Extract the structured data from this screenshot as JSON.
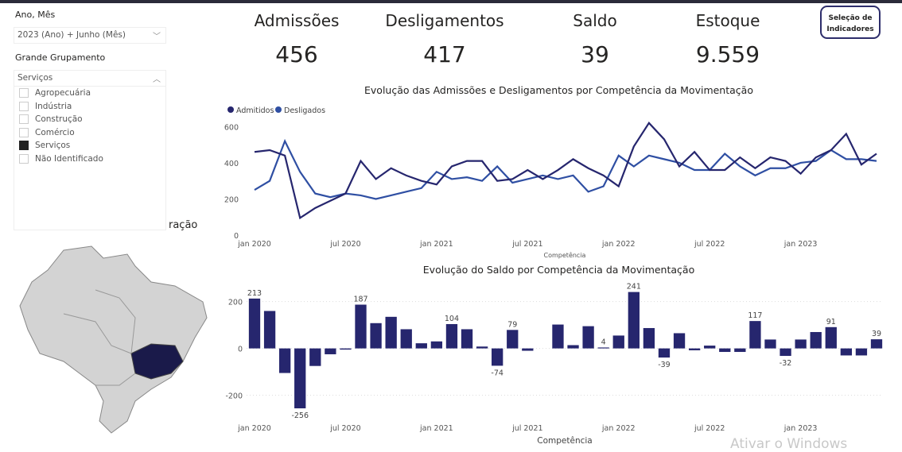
{
  "filters": {
    "period_label": "Ano, Mês",
    "period_value": "2023 (Ano) + Junho (Mês)",
    "group_label": "Grande Grupamento",
    "group_value": "Serviços",
    "group_options": [
      {
        "label": "Agropecuária",
        "checked": false
      },
      {
        "label": "Indústria",
        "checked": false
      },
      {
        "label": "Construção",
        "checked": false
      },
      {
        "label": "Comércio",
        "checked": false
      },
      {
        "label": "Serviços",
        "checked": true
      },
      {
        "label": "Não Identificado",
        "checked": false
      }
    ]
  },
  "partial_title": "ração",
  "kpis": [
    {
      "title": "Admissões",
      "value": "456"
    },
    {
      "title": "Desligamentos",
      "value": "417"
    },
    {
      "title": "Saldo",
      "value": "39"
    },
    {
      "title": "Estoque",
      "value": "9.559"
    }
  ],
  "selection_button": "Seleção de Indicadores",
  "watermark": "Ativar o Windows",
  "chart_data": [
    {
      "type": "line",
      "title": "Evolução das Admissões e Desligamentos por Competência da Movimentação",
      "xlabel": "Competência",
      "ylabel": "",
      "ylim": [
        0,
        650
      ],
      "yticks": [
        0,
        200,
        400,
        600
      ],
      "xticks": [
        "jan 2020",
        "jul 2020",
        "jan 2021",
        "jul 2021",
        "jan 2022",
        "jul 2022",
        "jan 2023"
      ],
      "colors": {
        "Admitidos": "#26266e",
        "Desligados": "#2f4fa3"
      },
      "series": [
        {
          "name": "Admitidos",
          "values": [
            460,
            470,
            440,
            95,
            150,
            190,
            230,
            410,
            310,
            370,
            330,
            300,
            280,
            380,
            410,
            410,
            300,
            310,
            360,
            310,
            360,
            420,
            370,
            330,
            270,
            490,
            620,
            530,
            380,
            460,
            360,
            360,
            430,
            370,
            430,
            410,
            340,
            430,
            470,
            560,
            390,
            450
          ]
        },
        {
          "name": "Desligados",
          "values": [
            250,
            300,
            520,
            350,
            230,
            210,
            230,
            220,
            200,
            220,
            240,
            260,
            350,
            310,
            320,
            300,
            380,
            290,
            310,
            330,
            310,
            330,
            240,
            270,
            440,
            380,
            440,
            420,
            400,
            360,
            360,
            450,
            380,
            330,
            370,
            370,
            400,
            410,
            470,
            420,
            420,
            410
          ]
        }
      ]
    },
    {
      "type": "bar",
      "title": "Evolução do Saldo por Competência da Movimentação",
      "xlabel": "Competência",
      "ylim": [
        -300,
        260
      ],
      "yticks": [
        -200,
        0,
        200
      ],
      "xticks": [
        "jan 2020",
        "jul 2020",
        "jan 2021",
        "jul 2021",
        "jan 2022",
        "jul 2022",
        "jan 2023"
      ],
      "color": "#26266e",
      "values": [
        213,
        160,
        -105,
        -256,
        -75,
        -25,
        -5,
        187,
        108,
        135,
        82,
        22,
        30,
        104,
        82,
        8,
        -74,
        79,
        -10,
        null,
        102,
        14,
        95,
        4,
        55,
        241,
        87,
        -39,
        65,
        -8,
        12,
        -15,
        -15,
        117,
        38,
        -32,
        38,
        70,
        91,
        -30,
        -30,
        39
      ],
      "labeled": [
        0,
        3,
        7,
        13,
        16,
        17,
        23,
        25,
        27,
        33,
        35,
        38,
        41
      ]
    }
  ]
}
